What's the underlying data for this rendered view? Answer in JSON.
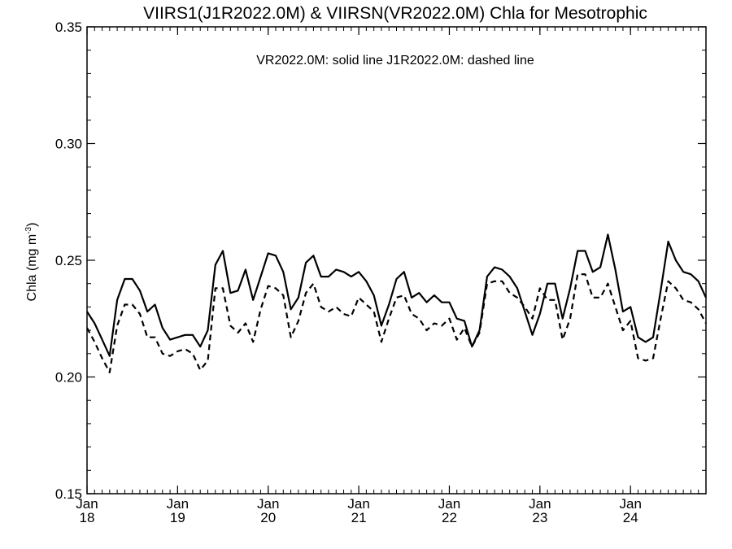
{
  "chart_data": {
    "type": "line",
    "title": "VIIRS1(J1R2022.0M) & VIIRSN(VR2022.0M)  Chla for Mesotrophic",
    "annotation": "VR2022.0M: solid line   J1R2022.0M: dashed line",
    "ylabel": "Chla (mg m",
    "ylabel_sup": "-3",
    "ylabel_close": ")",
    "xlabel": "",
    "ylim": [
      0.15,
      0.35
    ],
    "xlim": [
      2018.0,
      2024.8333
    ],
    "y_ticks": [
      "0.15",
      "0.20",
      "0.25",
      "0.30",
      "0.35"
    ],
    "x_ticks": [
      {
        "month": "Jan",
        "year": "18",
        "x": 2018
      },
      {
        "month": "Jan",
        "year": "19",
        "x": 2019
      },
      {
        "month": "Jan",
        "year": "20",
        "x": 2020
      },
      {
        "month": "Jan",
        "year": "21",
        "x": 2021
      },
      {
        "month": "Jan",
        "year": "22",
        "x": 2022
      },
      {
        "month": "Jan",
        "year": "23",
        "x": 2023
      },
      {
        "month": "Jan",
        "year": "24",
        "x": 2024
      }
    ],
    "x_start": 2018.0,
    "x_step": 0.0833333,
    "grid": false,
    "series": [
      {
        "style": "solid",
        "color": "#000000",
        "values": [
          0.228,
          0.223,
          0.216,
          0.209,
          0.233,
          0.242,
          0.242,
          0.237,
          0.228,
          0.231,
          0.221,
          0.216,
          0.217,
          0.218,
          0.218,
          0.213,
          0.22,
          0.248,
          0.254,
          0.236,
          0.237,
          0.246,
          0.233,
          0.243,
          0.253,
          0.252,
          0.245,
          0.229,
          0.234,
          0.249,
          0.252,
          0.243,
          0.243,
          0.246,
          0.245,
          0.243,
          0.245,
          0.241,
          0.235,
          0.222,
          0.231,
          0.242,
          0.245,
          0.234,
          0.236,
          0.232,
          0.235,
          0.232,
          0.232,
          0.225,
          0.224,
          0.213,
          0.22,
          0.243,
          0.247,
          0.246,
          0.243,
          0.238,
          0.228,
          0.218,
          0.227,
          0.24,
          0.24,
          0.225,
          0.238,
          0.254,
          0.254,
          0.245,
          0.247,
          0.261,
          0.246,
          0.228,
          0.23,
          0.217,
          0.215,
          0.217,
          0.237,
          0.258,
          0.25,
          0.245,
          0.244,
          0.241,
          0.234
        ]
      },
      {
        "style": "dashed",
        "color": "#000000",
        "values": [
          0.221,
          0.215,
          0.208,
          0.202,
          0.222,
          0.231,
          0.231,
          0.227,
          0.217,
          0.217,
          0.21,
          0.209,
          0.211,
          0.212,
          0.21,
          0.203,
          0.207,
          0.238,
          0.238,
          0.222,
          0.219,
          0.223,
          0.215,
          0.229,
          0.239,
          0.238,
          0.235,
          0.217,
          0.224,
          0.236,
          0.24,
          0.23,
          0.228,
          0.23,
          0.227,
          0.226,
          0.234,
          0.231,
          0.228,
          0.215,
          0.225,
          0.234,
          0.235,
          0.227,
          0.225,
          0.22,
          0.223,
          0.222,
          0.225,
          0.216,
          0.221,
          0.213,
          0.219,
          0.24,
          0.241,
          0.241,
          0.236,
          0.234,
          0.23,
          0.225,
          0.238,
          0.233,
          0.233,
          0.216,
          0.225,
          0.244,
          0.244,
          0.234,
          0.234,
          0.24,
          0.23,
          0.22,
          0.224,
          0.208,
          0.207,
          0.208,
          0.225,
          0.241,
          0.238,
          0.233,
          0.232,
          0.229,
          0.223
        ]
      }
    ]
  }
}
